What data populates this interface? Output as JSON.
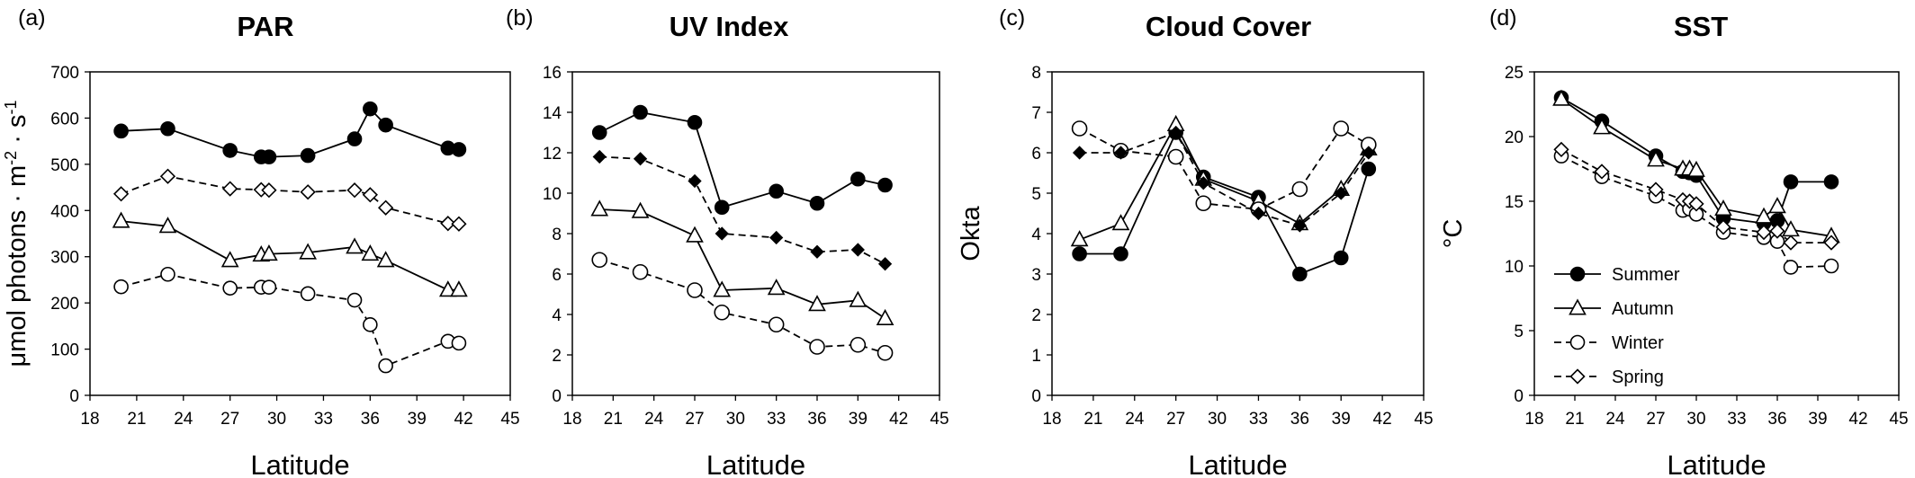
{
  "chart_data": [
    {
      "type": "line",
      "panel": "(a)",
      "title": "PAR",
      "xlabel": "Latitude",
      "ylabel": "μmol photons · m⁻² · s⁻¹",
      "ylabel_parts": [
        "μmol photons · m",
        "-2",
        " · s",
        "-1"
      ],
      "xlim": [
        18,
        45
      ],
      "ylim": [
        0,
        700
      ],
      "xticks": [
        18,
        21,
        24,
        27,
        30,
        33,
        36,
        39,
        42,
        45
      ],
      "yticks": [
        0,
        100,
        200,
        300,
        400,
        500,
        600,
        700
      ],
      "series": [
        {
          "name": "Summer",
          "x": [
            20,
            23,
            27,
            29,
            29.5,
            32,
            35,
            36,
            37,
            41,
            41.7
          ],
          "y": [
            572,
            577,
            530,
            516,
            516,
            519,
            555,
            620,
            585,
            535,
            532
          ]
        },
        {
          "name": "Autumn",
          "x": [
            20,
            23,
            27,
            29,
            29.5,
            32,
            35,
            36,
            37,
            41,
            41.7
          ],
          "y": [
            377,
            366,
            292,
            304,
            306,
            309,
            321,
            306,
            292,
            228,
            228
          ]
        },
        {
          "name": "Winter",
          "x": [
            20,
            23,
            27,
            29,
            29.5,
            32,
            35,
            36,
            37,
            41,
            41.7
          ],
          "y": [
            235,
            262,
            232,
            234,
            234,
            220,
            206,
            153,
            64,
            117,
            113
          ]
        },
        {
          "name": "Spring",
          "x": [
            20,
            23,
            27,
            29,
            29.5,
            32,
            35,
            36,
            37,
            41,
            41.7
          ],
          "y": [
            436,
            474,
            447,
            445,
            444,
            440,
            444,
            434,
            406,
            372,
            371
          ]
        }
      ]
    },
    {
      "type": "line",
      "panel": "(b)",
      "title": "UV Index",
      "xlabel": "Latitude",
      "ylabel": "",
      "xlim": [
        18,
        45
      ],
      "ylim": [
        0,
        16
      ],
      "xticks": [
        18,
        21,
        24,
        27,
        30,
        33,
        36,
        39,
        42,
        45
      ],
      "yticks": [
        0,
        2,
        4,
        6,
        8,
        10,
        12,
        14,
        16
      ],
      "series": [
        {
          "name": "Summer",
          "x": [
            20,
            23,
            27,
            29,
            33,
            36,
            39,
            41
          ],
          "y": [
            13.0,
            14.0,
            13.5,
            9.3,
            10.1,
            9.5,
            10.7,
            10.4
          ]
        },
        {
          "name": "Autumn",
          "x": [
            20,
            23,
            27,
            29,
            33,
            36,
            39,
            41
          ],
          "y": [
            9.2,
            9.1,
            7.9,
            5.2,
            5.3,
            4.5,
            4.7,
            3.8
          ]
        },
        {
          "name": "Winter",
          "x": [
            20,
            23,
            27,
            29,
            33,
            36,
            39,
            41
          ],
          "y": [
            6.7,
            6.1,
            5.2,
            4.1,
            3.5,
            2.4,
            2.5,
            2.1
          ]
        },
        {
          "name": "Spring",
          "x": [
            20,
            23,
            27,
            29,
            33,
            36,
            39,
            41
          ],
          "y": [
            11.8,
            11.7,
            10.6,
            8.0,
            7.8,
            7.1,
            7.2,
            6.5
          ]
        }
      ]
    },
    {
      "type": "line",
      "panel": "(c)",
      "title": "Cloud Cover",
      "xlabel": "Latitude",
      "ylabel": "Okta",
      "xlim": [
        18,
        45
      ],
      "ylim": [
        0,
        8
      ],
      "xticks": [
        18,
        21,
        24,
        27,
        30,
        33,
        36,
        39,
        42,
        45
      ],
      "yticks": [
        0,
        1,
        2,
        3,
        4,
        5,
        6,
        7,
        8
      ],
      "series": [
        {
          "name": "Summer",
          "x": [
            20,
            23,
            27,
            29,
            33,
            36,
            39,
            41
          ],
          "y": [
            3.5,
            3.5,
            6.5,
            5.4,
            4.9,
            3.0,
            3.4,
            5.6
          ]
        },
        {
          "name": "Autumn",
          "x": [
            20,
            23,
            27,
            29,
            33,
            36,
            39,
            41
          ],
          "y": [
            3.85,
            4.25,
            6.7,
            5.35,
            4.8,
            4.25,
            5.1,
            6.1
          ]
        },
        {
          "name": "Winter",
          "x": [
            20,
            23,
            27,
            29,
            33,
            36,
            39,
            41
          ],
          "y": [
            6.6,
            6.05,
            5.9,
            4.75,
            4.6,
            5.1,
            6.6,
            6.2
          ]
        },
        {
          "name": "Spring",
          "x": [
            20,
            23,
            27,
            29,
            33,
            36,
            39,
            41
          ],
          "y": [
            6.0,
            6.0,
            6.5,
            5.25,
            4.5,
            4.2,
            5.0,
            6.0
          ]
        }
      ]
    },
    {
      "type": "line",
      "panel": "(d)",
      "title": "SST",
      "xlabel": "Latitude",
      "ylabel": "°C",
      "xlim": [
        18,
        45
      ],
      "ylim": [
        0,
        25
      ],
      "xticks": [
        18,
        21,
        24,
        27,
        30,
        33,
        36,
        39,
        42,
        45
      ],
      "yticks": [
        0,
        5,
        10,
        15,
        20,
        25
      ],
      "legend_position": "lower-left",
      "series": [
        {
          "name": "Summer",
          "x": [
            20,
            23,
            27,
            29,
            29.5,
            30,
            32,
            35,
            36,
            37,
            40
          ],
          "y": [
            23.0,
            21.2,
            18.5,
            17.3,
            17.2,
            17.0,
            13.7,
            13.3,
            13.5,
            16.5,
            16.5
          ]
        },
        {
          "name": "Autumn",
          "x": [
            20,
            23,
            27,
            29,
            29.5,
            30,
            32,
            35,
            36,
            37,
            40
          ],
          "y": [
            22.9,
            20.7,
            18.2,
            17.5,
            17.5,
            17.4,
            14.4,
            13.8,
            14.6,
            12.8,
            12.3
          ]
        },
        {
          "name": "Winter",
          "x": [
            20,
            23,
            27,
            29,
            29.5,
            30,
            32,
            35,
            36,
            37,
            40
          ],
          "y": [
            18.5,
            16.9,
            15.4,
            14.3,
            14.4,
            14.0,
            12.6,
            12.2,
            11.9,
            9.9,
            10.0
          ]
        },
        {
          "name": "Spring",
          "x": [
            20,
            23,
            27,
            29,
            29.5,
            30,
            32,
            35,
            36,
            37,
            40
          ],
          "y": [
            19.0,
            17.3,
            15.9,
            15.1,
            15.0,
            14.8,
            13.0,
            12.6,
            12.7,
            11.8,
            11.8
          ]
        }
      ]
    }
  ],
  "legend": {
    "entries": [
      {
        "name": "Summer",
        "marker": "filled-circle",
        "line": "solid"
      },
      {
        "name": "Autumn",
        "marker": "open-triangle",
        "line": "solid"
      },
      {
        "name": "Winter",
        "marker": "open-circle",
        "line": "dashed"
      },
      {
        "name": "Spring",
        "marker": "open-diamond",
        "line": "dashed"
      }
    ]
  },
  "styles": {
    "line_color": "#000000",
    "open_marker_fill": "#ffffff",
    "axis_color": "#000000"
  }
}
